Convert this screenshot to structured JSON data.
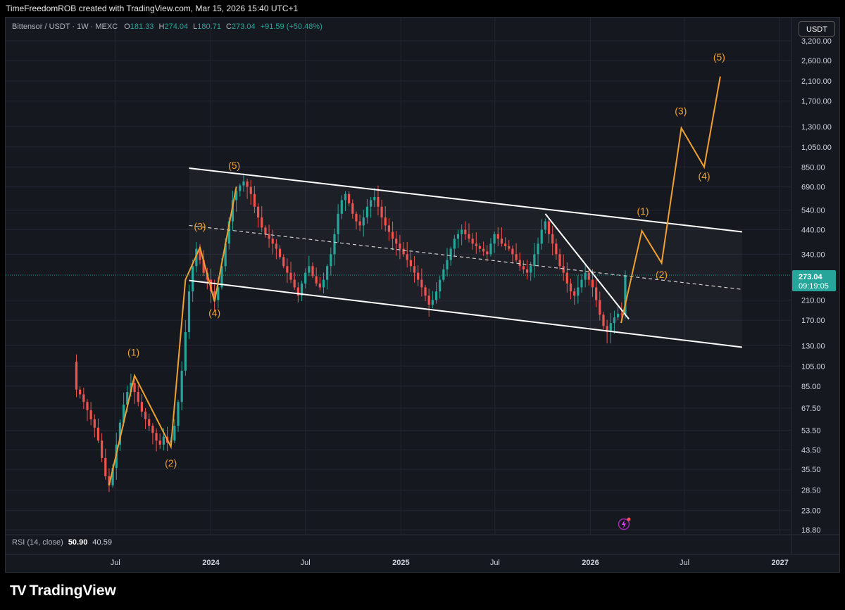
{
  "header": {
    "attribution": "TimeFreedomROB created with TradingView.com, Mar 15, 2026 15:40 UTC+1"
  },
  "legend": {
    "symbol": "Bittensor / USDT · 1W · MEXC",
    "open_label": "O",
    "open": "181.33",
    "high_label": "H",
    "high": "274.04",
    "low_label": "L",
    "low": "180.71",
    "close_label": "C",
    "close": "273.04",
    "change": "+91.59 (+50.48%)"
  },
  "currency_button": "USDT",
  "rsi": {
    "label": "RSI (14, close)",
    "value1": "50.90",
    "value2": "40.59"
  },
  "price_badge": {
    "price": "273.04",
    "countdown": "09:19:05"
  },
  "footer": {
    "brand": "TradingView"
  },
  "colors": {
    "up": "#26a69a",
    "down": "#ef5350",
    "wave": "#f0a030",
    "channel": "#ffffff",
    "background": "#161820"
  },
  "chart_data": {
    "type": "candlestick",
    "scale": "log",
    "ylim": [
      17.5,
      3600
    ],
    "y_ticks": [
      "3,200.00",
      "2,600.00",
      "2,100.00",
      "1,700.00",
      "1,300.00",
      "1,050.00",
      "850.00",
      "690.00",
      "540.00",
      "440.00",
      "340.00",
      "210.00",
      "170.00",
      "130.00",
      "105.00",
      "85.00",
      "67.50",
      "53.50",
      "43.50",
      "35.50",
      "28.50",
      "23.00",
      "18.80"
    ],
    "x_ticks": [
      "Jul",
      "2024",
      "Jul",
      "2025",
      "Jul",
      "2026",
      "Jul",
      "2027"
    ],
    "x_range": [
      "2023-04",
      "2027-02"
    ],
    "current_price": 273.04,
    "candles_path": [
      [
        "2023-04-10",
        110
      ],
      [
        "2023-04-17",
        82
      ],
      [
        "2023-04-24",
        78
      ],
      [
        "2023-05-01",
        72
      ],
      [
        "2023-05-08",
        66
      ],
      [
        "2023-05-15",
        60
      ],
      [
        "2023-05-22",
        55
      ],
      [
        "2023-05-29",
        48
      ],
      [
        "2023-06-05",
        40
      ],
      [
        "2023-06-12",
        33
      ],
      [
        "2023-06-19",
        30
      ],
      [
        "2023-06-26",
        36
      ],
      [
        "2023-07-03",
        46
      ],
      [
        "2023-07-10",
        58
      ],
      [
        "2023-07-17",
        70
      ],
      [
        "2023-07-24",
        80
      ],
      [
        "2023-07-31",
        88
      ],
      [
        "2023-08-07",
        80
      ],
      [
        "2023-08-14",
        72
      ],
      [
        "2023-08-21",
        65
      ],
      [
        "2023-08-28",
        60
      ],
      [
        "2023-09-04",
        56
      ],
      [
        "2023-09-11",
        52
      ],
      [
        "2023-09-18",
        48
      ],
      [
        "2023-09-25",
        46
      ],
      [
        "2023-10-02",
        50
      ],
      [
        "2023-10-09",
        47
      ],
      [
        "2023-10-16",
        48
      ],
      [
        "2023-10-23",
        56
      ],
      [
        "2023-10-30",
        72
      ],
      [
        "2023-11-06",
        100
      ],
      [
        "2023-11-13",
        150
      ],
      [
        "2023-11-20",
        230
      ],
      [
        "2023-11-27",
        300
      ],
      [
        "2023-12-04",
        360
      ],
      [
        "2023-12-11",
        320
      ],
      [
        "2023-12-18",
        280
      ],
      [
        "2023-12-25",
        260
      ],
      [
        "2024-01-01",
        230
      ],
      [
        "2024-01-08",
        210
      ],
      [
        "2024-01-15",
        240
      ],
      [
        "2024-01-22",
        300
      ],
      [
        "2024-01-29",
        380
      ],
      [
        "2024-02-05",
        480
      ],
      [
        "2024-02-12",
        600
      ],
      [
        "2024-02-19",
        660
      ],
      [
        "2024-02-26",
        700
      ],
      [
        "2024-03-04",
        730
      ],
      [
        "2024-03-11",
        690
      ],
      [
        "2024-03-18",
        640
      ],
      [
        "2024-03-25",
        560
      ],
      [
        "2024-04-01",
        500
      ],
      [
        "2024-04-08",
        450
      ],
      [
        "2024-04-15",
        420
      ],
      [
        "2024-04-22",
        400
      ],
      [
        "2024-04-29",
        380
      ],
      [
        "2024-05-06",
        360
      ],
      [
        "2024-05-13",
        330
      ],
      [
        "2024-05-20",
        300
      ],
      [
        "2024-05-27",
        280
      ],
      [
        "2024-06-03",
        260
      ],
      [
        "2024-06-10",
        240
      ],
      [
        "2024-06-17",
        220
      ],
      [
        "2024-06-24",
        250
      ],
      [
        "2024-07-01",
        280
      ],
      [
        "2024-07-08",
        300
      ],
      [
        "2024-07-15",
        270
      ],
      [
        "2024-07-22",
        250
      ],
      [
        "2024-07-29",
        240
      ],
      [
        "2024-08-05",
        260
      ],
      [
        "2024-08-12",
        300
      ],
      [
        "2024-08-19",
        340
      ],
      [
        "2024-08-26",
        420
      ],
      [
        "2024-09-02",
        520
      ],
      [
        "2024-09-09",
        600
      ],
      [
        "2024-09-16",
        640
      ],
      [
        "2024-09-23",
        580
      ],
      [
        "2024-09-30",
        520
      ],
      [
        "2024-10-07",
        480
      ],
      [
        "2024-10-14",
        460
      ],
      [
        "2024-10-21",
        500
      ],
      [
        "2024-10-28",
        560
      ],
      [
        "2024-11-04",
        600
      ],
      [
        "2024-11-11",
        620
      ],
      [
        "2024-11-18",
        560
      ],
      [
        "2024-11-25",
        500
      ],
      [
        "2024-12-02",
        460
      ],
      [
        "2024-12-09",
        430
      ],
      [
        "2024-12-16",
        400
      ],
      [
        "2024-12-23",
        380
      ],
      [
        "2024-12-30",
        360
      ],
      [
        "2025-01-06",
        340
      ],
      [
        "2025-01-13",
        320
      ],
      [
        "2025-01-20",
        300
      ],
      [
        "2025-01-27",
        280
      ],
      [
        "2025-02-03",
        260
      ],
      [
        "2025-02-10",
        240
      ],
      [
        "2025-02-17",
        220
      ],
      [
        "2025-02-24",
        200
      ],
      [
        "2025-03-03",
        210
      ],
      [
        "2025-03-10",
        230
      ],
      [
        "2025-03-17",
        260
      ],
      [
        "2025-03-24",
        290
      ],
      [
        "2025-03-31",
        320
      ],
      [
        "2025-04-07",
        360
      ],
      [
        "2025-04-14",
        400
      ],
      [
        "2025-04-21",
        420
      ],
      [
        "2025-04-28",
        440
      ],
      [
        "2025-05-05",
        420
      ],
      [
        "2025-05-12",
        400
      ],
      [
        "2025-05-19",
        380
      ],
      [
        "2025-05-26",
        370
      ],
      [
        "2025-06-02",
        360
      ],
      [
        "2025-06-09",
        350
      ],
      [
        "2025-06-16",
        340
      ],
      [
        "2025-06-23",
        380
      ],
      [
        "2025-06-30",
        420
      ],
      [
        "2025-07-07",
        400
      ],
      [
        "2025-07-14",
        380
      ],
      [
        "2025-07-21",
        370
      ],
      [
        "2025-07-28",
        360
      ],
      [
        "2025-08-04",
        340
      ],
      [
        "2025-08-11",
        320
      ],
      [
        "2025-08-18",
        300
      ],
      [
        "2025-08-25",
        290
      ],
      [
        "2025-09-01",
        280
      ],
      [
        "2025-09-08",
        300
      ],
      [
        "2025-09-15",
        340
      ],
      [
        "2025-09-22",
        380
      ],
      [
        "2025-09-29",
        440
      ],
      [
        "2025-10-06",
        480
      ],
      [
        "2025-10-13",
        420
      ],
      [
        "2025-10-20",
        380
      ],
      [
        "2025-10-27",
        340
      ],
      [
        "2025-11-03",
        300
      ],
      [
        "2025-11-10",
        280
      ],
      [
        "2025-11-17",
        250
      ],
      [
        "2025-11-24",
        230
      ],
      [
        "2025-12-01",
        220
      ],
      [
        "2025-12-08",
        240
      ],
      [
        "2025-12-15",
        260
      ],
      [
        "2025-12-22",
        280
      ],
      [
        "2025-12-29",
        260
      ],
      [
        "2026-01-05",
        240
      ],
      [
        "2026-01-12",
        210
      ],
      [
        "2026-01-19",
        180
      ],
      [
        "2026-01-26",
        160
      ],
      [
        "2026-02-02",
        150
      ],
      [
        "2026-02-09",
        165
      ],
      [
        "2026-02-16",
        175
      ],
      [
        "2026-02-23",
        182
      ],
      [
        "2026-03-02",
        181
      ],
      [
        "2026-03-09",
        273
      ]
    ],
    "channel": {
      "upper": [
        [
          "2023-11-20",
          840
        ],
        [
          "2026-10-20",
          430
        ]
      ],
      "mid": [
        [
          "2023-11-20",
          460
        ],
        [
          "2026-10-20",
          235
        ]
      ],
      "lower": [
        [
          "2023-11-20",
          258
        ],
        [
          "2026-10-20",
          128
        ]
      ]
    },
    "trendline": [
      [
        "2025-10-06",
        520
      ],
      [
        "2026-03-16",
        172
      ]
    ],
    "wave_lines": [
      [
        [
          "2023-06-19",
          30
        ],
        [
          "2023-08-07",
          95
        ],
        [
          "2023-10-16",
          45
        ],
        [
          "2023-11-13",
          260
        ],
        [
          "2023-12-11",
          365
        ],
        [
          "2024-01-08",
          207
        ],
        [
          "2024-02-19",
          690
        ]
      ],
      [
        [
          "2026-03-01",
          165
        ],
        [
          "2026-04-10",
          435
        ],
        [
          "2026-05-18",
          310
        ],
        [
          "2026-06-25",
          1280
        ],
        [
          "2026-08-08",
          850
        ],
        [
          "2026-09-08",
          2200
        ]
      ]
    ],
    "wave_labels": [
      {
        "text": "(1)",
        "x": "2023-08-05",
        "y": 117,
        "pos": "above"
      },
      {
        "text": "(2)",
        "x": "2023-10-16",
        "y": 36.5,
        "pos": "below"
      },
      {
        "text": "(3)",
        "x": "2023-12-11",
        "y": 440,
        "pos": "above"
      },
      {
        "text": "(4)",
        "x": "2024-01-08",
        "y": 177,
        "pos": "below"
      },
      {
        "text": "(5)",
        "x": "2024-02-15",
        "y": 835,
        "pos": "above"
      },
      {
        "text": "(1)",
        "x": "2026-04-12",
        "y": 515,
        "pos": "above"
      },
      {
        "text": "(2)",
        "x": "2026-05-18",
        "y": 265,
        "pos": "below"
      },
      {
        "text": "(3)",
        "x": "2026-06-24",
        "y": 1480,
        "pos": "above"
      },
      {
        "text": "(4)",
        "x": "2026-08-08",
        "y": 745,
        "pos": "below"
      },
      {
        "text": "(5)",
        "x": "2026-09-06",
        "y": 2600,
        "pos": "above"
      }
    ]
  }
}
